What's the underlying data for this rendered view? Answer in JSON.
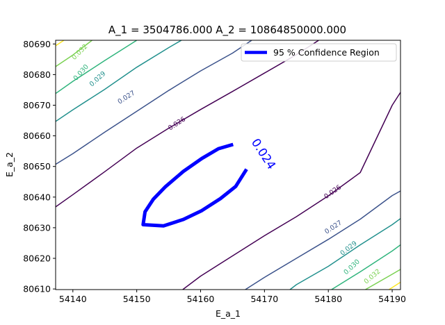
{
  "chart_data": {
    "type": "contour",
    "title": "A_1 = 3504786.000 A_2 = 10864850000.000",
    "xlabel": "E_a_1",
    "ylabel": "E_a_2",
    "xlim": [
      54137.3,
      54191.3
    ],
    "ylim": [
      80609.8,
      80691.2
    ],
    "xticks": [
      54140,
      54150,
      54160,
      54170,
      54180,
      54190
    ],
    "yticks": [
      80610,
      80620,
      80630,
      80640,
      80650,
      80660,
      80670,
      80680,
      80690
    ],
    "grid": false,
    "legend": {
      "position": "top-right",
      "entries": [
        "95 % Confidence Region"
      ]
    },
    "colors": {
      "c026": "#440154",
      "c027": "#3b528b",
      "c029": "#21908d",
      "c030": "#2fb47c",
      "c032": "#7ad151",
      "c033": "#fde725",
      "confidence": "#0000ff"
    },
    "contours": [
      {
        "level": "0.026",
        "color": "c026",
        "segments": [
          [
            [
              54137.3,
              80636.8
            ],
            [
              54140,
              80640.8
            ],
            [
              54145,
              80648.3
            ],
            [
              54150,
              80656.0
            ],
            [
              54155,
              80662.5
            ],
            [
              54160,
              80668.6
            ],
            [
              54165,
              80674.5
            ],
            [
              54170,
              80680.5
            ],
            [
              54175,
              80686.5
            ],
            [
              54178.5,
              80691.2
            ]
          ],
          [
            [
              54157.2,
              80609.8
            ],
            [
              54160,
              80614.2
            ],
            [
              54165,
              80620.8
            ],
            [
              54170,
              80627.4
            ],
            [
              54175,
              80633.6
            ],
            [
              54180,
              80640.4
            ],
            [
              54185,
              80648.0
            ],
            [
              54190,
              80670.0
            ],
            [
              54191.3,
              80674.2
            ]
          ]
        ]
      },
      {
        "level": "0.027",
        "color": "c027",
        "segments": [
          [
            [
              54137.3,
              80650.7
            ],
            [
              54140,
              80654.2
            ],
            [
              54145,
              80661.2
            ],
            [
              54150,
              80668.0
            ],
            [
              54155,
              80674.8
            ],
            [
              54160,
              80681.2
            ],
            [
              54165,
              80687.0
            ],
            [
              54168,
              80691.2
            ]
          ],
          [
            [
              54167.0,
              80609.8
            ],
            [
              54170,
              80613.8
            ],
            [
              54175,
              80620.0
            ],
            [
              54180,
              80626.2
            ],
            [
              54185,
              80632.8
            ],
            [
              54190,
              80640.5
            ],
            [
              54191.3,
              80642.0
            ]
          ]
        ]
      },
      {
        "level": "0.029",
        "color": "c029",
        "segments": [
          [
            [
              54137.3,
              80664.7
            ],
            [
              54140,
              80668.5
            ],
            [
              54145,
              80675.2
            ],
            [
              54150,
              80682.4
            ],
            [
              54155,
              80688.8
            ],
            [
              54157,
              80691.2
            ]
          ],
          [
            [
              54174.0,
              80609.8
            ],
            [
              54175,
              80611.4
            ],
            [
              54180,
              80617.4
            ],
            [
              54185,
              80624.4
            ],
            [
              54190,
              80631.0
            ],
            [
              54191.3,
              80633.0
            ]
          ]
        ]
      },
      {
        "level": "0.030",
        "color": "c030",
        "segments": [
          [
            [
              54137.3,
              80673.8
            ],
            [
              54140,
              80677.8
            ],
            [
              54145,
              80684.6
            ],
            [
              54150,
              80691.2
            ]
          ],
          [
            [
              54180.5,
              80609.8
            ],
            [
              54185,
              80615.6
            ],
            [
              54190,
              80622.4
            ],
            [
              54191.3,
              80624.4
            ]
          ]
        ]
      },
      {
        "level": "0.032",
        "color": "c032",
        "segments": [
          [
            [
              54137.3,
              80682.6
            ],
            [
              54140,
              80686.4
            ],
            [
              54143,
              80691.2
            ]
          ],
          [
            [
              54185.8,
              80609.8
            ],
            [
              54190,
              80614.8
            ],
            [
              54191.3,
              80616.4
            ]
          ]
        ]
      },
      {
        "level": "",
        "color": "c033",
        "segments": [
          [
            [
              54137.3,
              80689.4
            ],
            [
              54138.6,
              80691.2
            ]
          ],
          [
            [
              54189.5,
              80609.8
            ],
            [
              54191.3,
              80612.2
            ]
          ]
        ]
      }
    ],
    "contour_labels": [
      {
        "text": "0.026",
        "x": 54156.3,
        "y": 80663.9,
        "angle": -33,
        "color": "c026"
      },
      {
        "text": "0.026",
        "x": 54180.7,
        "y": 80641.6,
        "angle": -35,
        "color": "c026"
      },
      {
        "text": "0.027",
        "x": 54148.4,
        "y": 80672.5,
        "angle": -33,
        "color": "c027"
      },
      {
        "text": "0.027",
        "x": 54180.8,
        "y": 80630.1,
        "angle": -34,
        "color": "c027"
      },
      {
        "text": "0.029",
        "x": 54143.9,
        "y": 80678.5,
        "angle": -42,
        "color": "c029"
      },
      {
        "text": "0.029",
        "x": 54183.2,
        "y": 80623.2,
        "angle": -38,
        "color": "c029"
      },
      {
        "text": "0.030",
        "x": 54141.3,
        "y": 80680.6,
        "angle": -48,
        "color": "c030"
      },
      {
        "text": "0.030",
        "x": 54183.7,
        "y": 80617.1,
        "angle": -43,
        "color": "c030"
      },
      {
        "text": "0.032",
        "x": 54141.1,
        "y": 80687.3,
        "angle": -45,
        "color": "c032"
      },
      {
        "text": "0.032",
        "x": 54186.9,
        "y": 80614.0,
        "angle": -40,
        "color": "c032"
      }
    ],
    "confidence_label": {
      "text": "0.024",
      "x": 54169.8,
      "y": 80654.0,
      "angle": 57
    },
    "confidence_region": [
      [
        54165.1,
        80657.2
      ],
      [
        54162.8,
        80655.8
      ],
      [
        54160.2,
        80652.6
      ],
      [
        54157.3,
        80648.4
      ],
      [
        54154.5,
        80643.4
      ],
      [
        54152.6,
        80639.3
      ],
      [
        54151.3,
        80635.2
      ],
      [
        54151.0,
        80631.0
      ],
      [
        54154.2,
        80630.6
      ],
      [
        54157.3,
        80632.7
      ],
      [
        54160.2,
        80635.6
      ],
      [
        54163.1,
        80639.5
      ],
      [
        54165.5,
        80643.5
      ],
      [
        54167.2,
        80649.1
      ]
    ]
  }
}
